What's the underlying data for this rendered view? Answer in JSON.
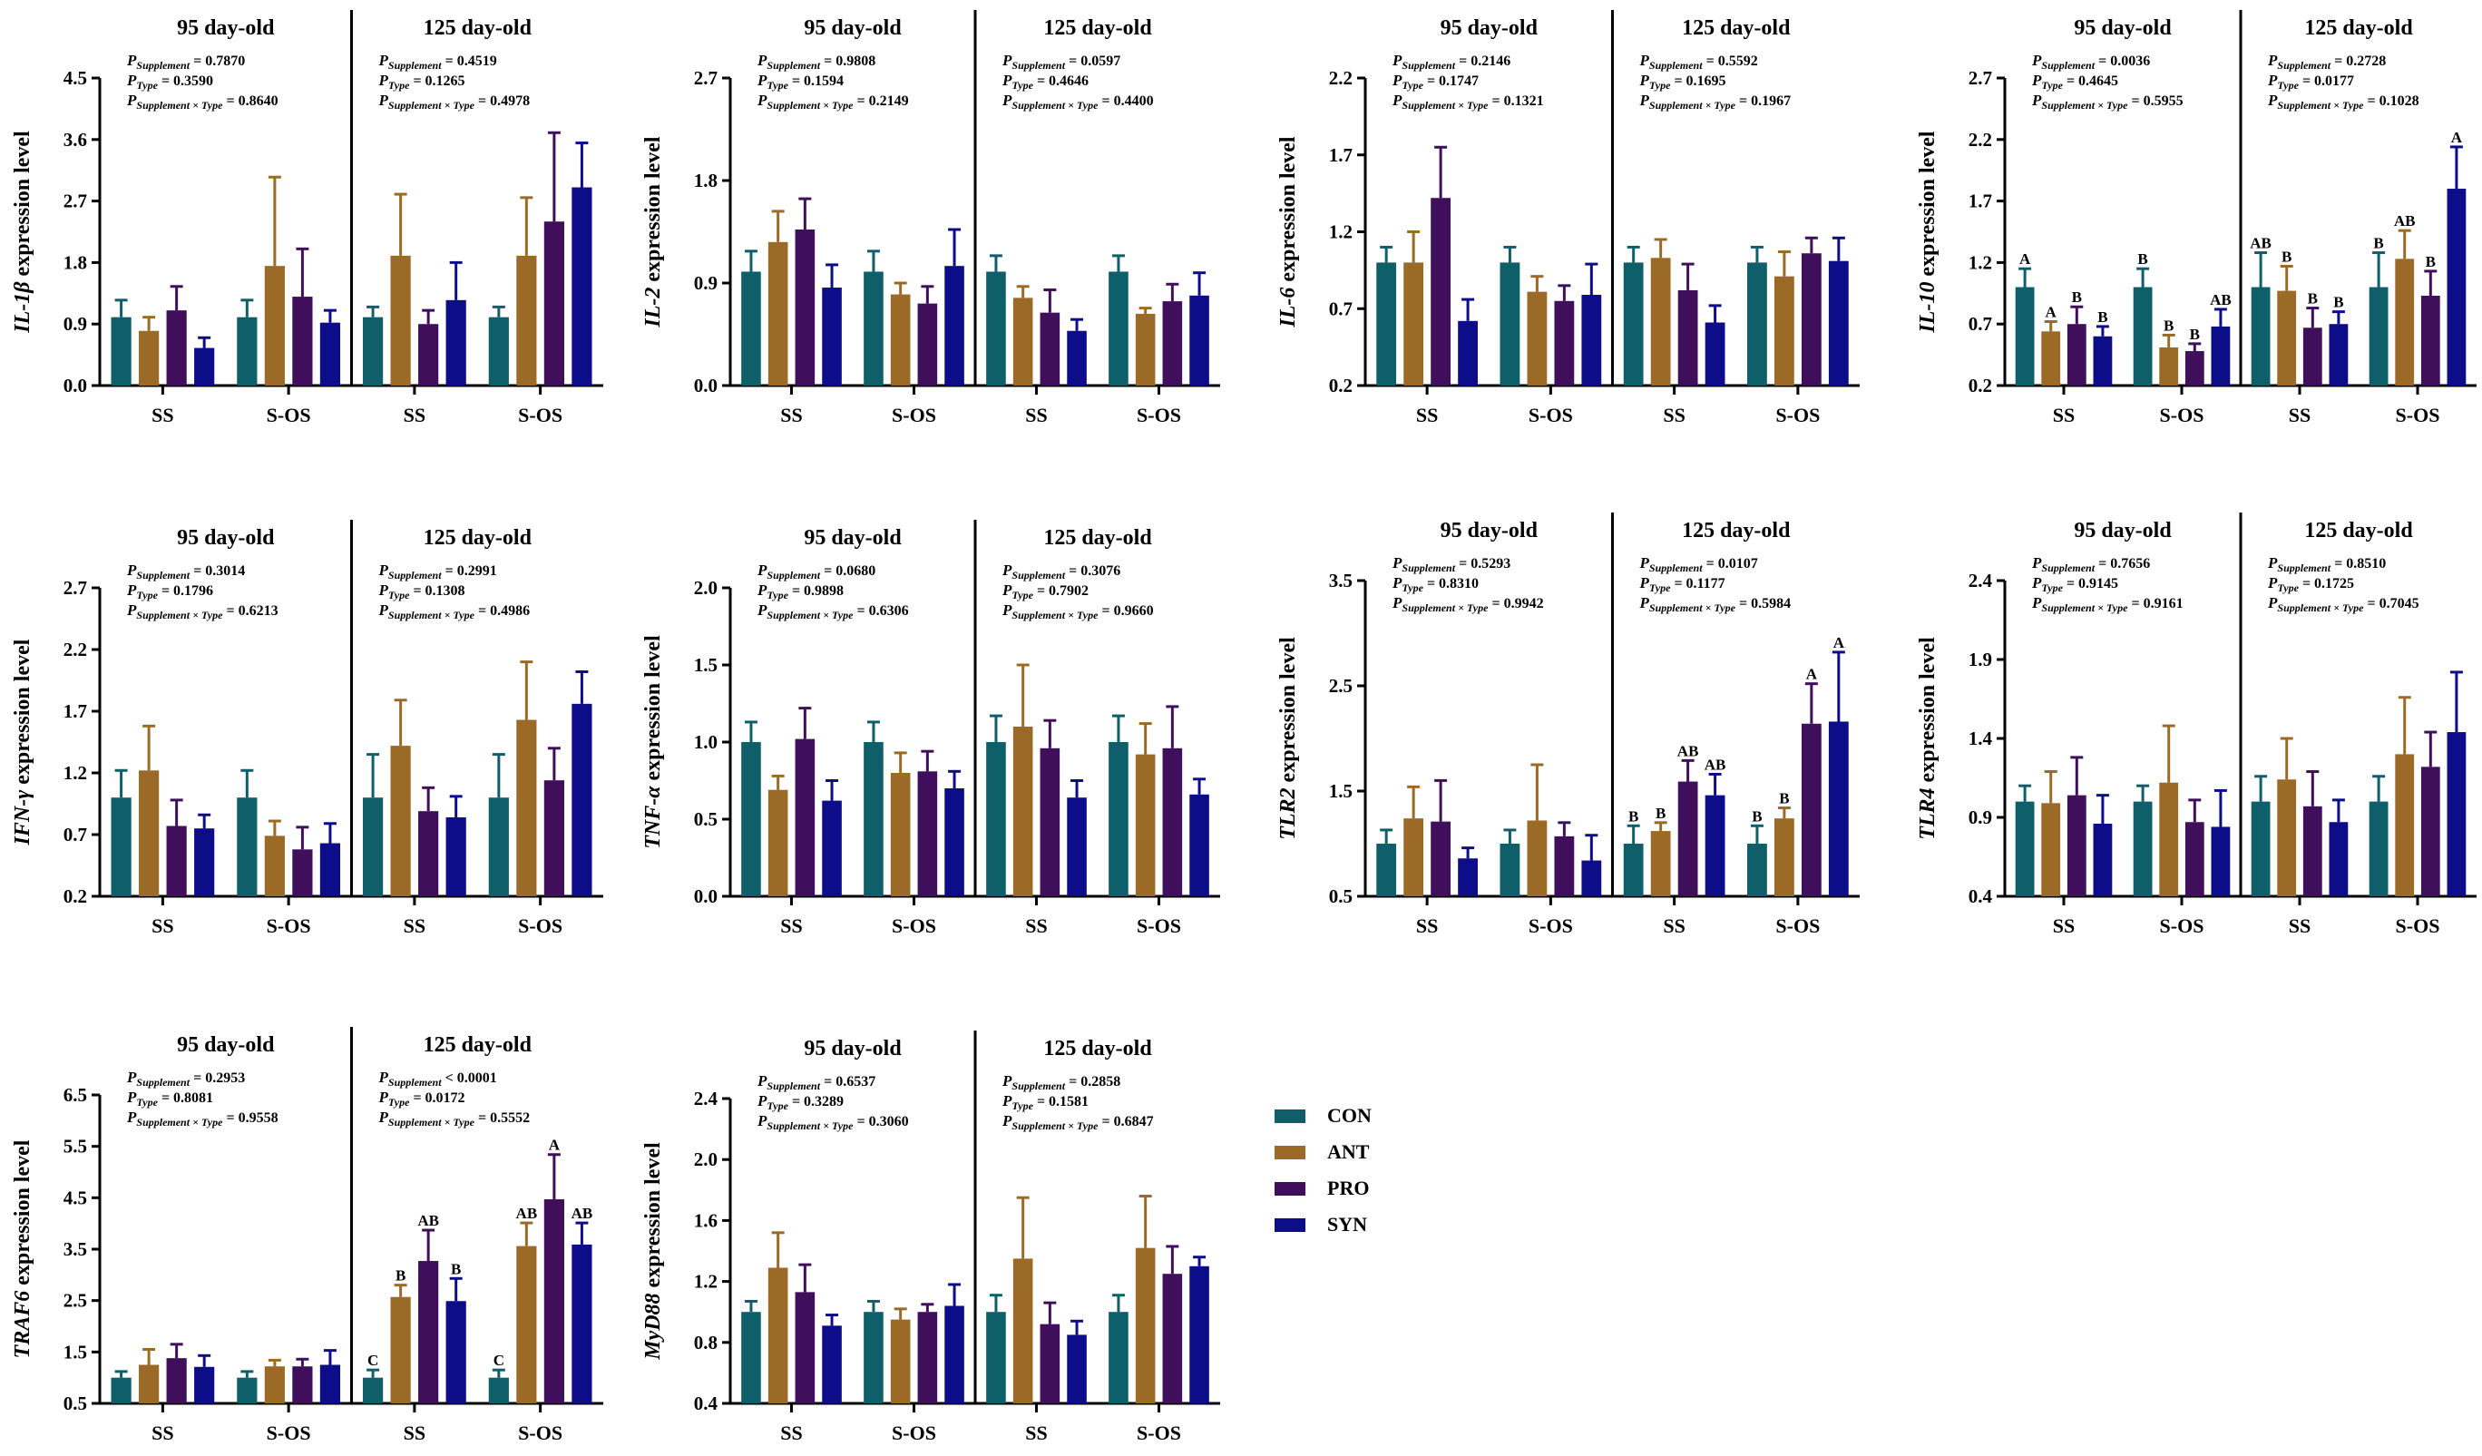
{
  "colors": {
    "CON": "#0f5f6b",
    "ANT": "#9b6a27",
    "PRO": "#3f0f5b",
    "SYN": "#0d0d8a"
  },
  "legend": [
    "CON",
    "ANT",
    "PRO",
    "SYN"
  ],
  "common": {
    "groups": [
      "SS",
      "S-OS"
    ],
    "ages": [
      "95 day-old",
      "125 day-old"
    ],
    "p_prefix": "P",
    "p_sub_supp": "Supplement",
    "p_sub_type": "Type",
    "p_sub_inter": "Supplement × Type"
  },
  "chart_data": [
    {
      "type": "bar",
      "gene": "IL-1β",
      "ylabel_suffix": " expression level",
      "ylim": [
        0,
        4.5
      ],
      "yticks": [
        "0.0",
        "0.9",
        "1.8",
        "2.7",
        "3.6",
        "4.5"
      ],
      "pvalues": [
        [
          "= 0.7870",
          "= 0.3590",
          "= 0.8640"
        ],
        [
          "= 0.4519",
          "= 0.1265",
          "= 0.4978"
        ]
      ],
      "series": [
        {
          "name": "CON",
          "values": [
            1.0,
            1.0,
            1.0,
            1.0
          ],
          "err": [
            0.25,
            0.25,
            0.15,
            0.15
          ]
        },
        {
          "name": "ANT",
          "values": [
            0.8,
            1.75,
            1.9,
            1.9
          ],
          "err": [
            0.2,
            1.3,
            0.9,
            0.85
          ]
        },
        {
          "name": "PRO",
          "values": [
            1.1,
            1.3,
            0.9,
            2.4
          ],
          "err": [
            0.35,
            0.7,
            0.2,
            1.3
          ]
        },
        {
          "name": "SYN",
          "values": [
            0.55,
            0.92,
            1.25,
            2.9
          ],
          "err": [
            0.15,
            0.18,
            0.55,
            0.65
          ]
        }
      ],
      "letters": []
    },
    {
      "type": "bar",
      "gene": "IL-2",
      "ylabel_suffix": " expression level",
      "ylim": [
        0,
        2.7
      ],
      "yticks": [
        "0.0",
        "0.9",
        "1.8",
        "2.7"
      ],
      "pvalues": [
        [
          "= 0.9808",
          "= 0.1594",
          "= 0.2149"
        ],
        [
          "= 0.0597",
          "= 0.4646",
          "= 0.4400"
        ]
      ],
      "series": [
        {
          "name": "CON",
          "values": [
            1.0,
            1.0,
            1.0,
            1.0
          ],
          "err": [
            0.18,
            0.18,
            0.14,
            0.14
          ]
        },
        {
          "name": "ANT",
          "values": [
            1.26,
            0.8,
            0.77,
            0.63
          ],
          "err": [
            0.27,
            0.1,
            0.1,
            0.05
          ]
        },
        {
          "name": "PRO",
          "values": [
            1.37,
            0.72,
            0.64,
            0.74
          ],
          "err": [
            0.27,
            0.15,
            0.2,
            0.15
          ]
        },
        {
          "name": "SYN",
          "values": [
            0.86,
            1.05,
            0.48,
            0.79
          ],
          "err": [
            0.2,
            0.32,
            0.1,
            0.2
          ]
        }
      ],
      "letters": []
    },
    {
      "type": "bar",
      "gene": "IL-6",
      "ylabel_suffix": " expression level",
      "ylim": [
        0.2,
        2.2
      ],
      "yticks": [
        "0.2",
        "0.7",
        "1.2",
        "1.7",
        "2.2"
      ],
      "pvalues": [
        [
          "= 0.2146",
          "= 0.1747",
          "= 0.1321"
        ],
        [
          "= 0.5592",
          "= 0.1695",
          "= 0.1967"
        ]
      ],
      "series": [
        {
          "name": "CON",
          "values": [
            1.0,
            1.0,
            1.0,
            1.0
          ],
          "err": [
            0.1,
            0.1,
            0.1,
            0.1
          ]
        },
        {
          "name": "ANT",
          "values": [
            1.0,
            0.81,
            1.03,
            0.91
          ],
          "err": [
            0.2,
            0.1,
            0.12,
            0.16
          ]
        },
        {
          "name": "PRO",
          "values": [
            1.42,
            0.75,
            0.82,
            1.06
          ],
          "err": [
            0.33,
            0.1,
            0.17,
            0.1
          ]
        },
        {
          "name": "SYN",
          "values": [
            0.62,
            0.79,
            0.61,
            1.01
          ],
          "err": [
            0.14,
            0.2,
            0.11,
            0.15
          ]
        }
      ],
      "letters": []
    },
    {
      "type": "bar",
      "gene": "IL-10",
      "ylabel_suffix": " expression level",
      "ylim": [
        0.2,
        2.7
      ],
      "yticks": [
        "0.2",
        "0.7",
        "1.2",
        "1.7",
        "2.2",
        "2.7"
      ],
      "pvalues": [
        [
          "= 0.0036",
          "= 0.4645",
          "= 0.5955"
        ],
        [
          "= 0.2728",
          "= 0.0177",
          "= 0.1028"
        ]
      ],
      "series": [
        {
          "name": "CON",
          "values": [
            1.0,
            1.0,
            1.0,
            1.0
          ],
          "err": [
            0.15,
            0.15,
            0.28,
            0.28
          ]
        },
        {
          "name": "ANT",
          "values": [
            0.64,
            0.51,
            0.97,
            1.23
          ],
          "err": [
            0.08,
            0.1,
            0.2,
            0.23
          ]
        },
        {
          "name": "PRO",
          "values": [
            0.7,
            0.48,
            0.67,
            0.93
          ],
          "err": [
            0.14,
            0.06,
            0.16,
            0.2
          ]
        },
        {
          "name": "SYN",
          "values": [
            0.6,
            0.68,
            0.7,
            1.8
          ],
          "err": [
            0.08,
            0.14,
            0.1,
            0.34
          ]
        }
      ],
      "letters": [
        [
          "A",
          "A",
          "B",
          "B"
        ],
        [
          "B",
          "B",
          "B",
          "AB"
        ],
        [
          "AB",
          "B",
          "B",
          "B"
        ],
        [
          "B",
          "AB",
          "B",
          "A"
        ]
      ]
    },
    {
      "type": "bar",
      "gene": "IFN-γ",
      "ylabel_suffix": " expression level",
      "ylim": [
        0.2,
        2.7
      ],
      "yticks": [
        "0.2",
        "0.7",
        "1.2",
        "1.7",
        "2.2",
        "2.7"
      ],
      "pvalues": [
        [
          "= 0.3014",
          "= 0.1796",
          "= 0.6213"
        ],
        [
          "= 0.2991",
          "= 0.1308",
          "= 0.4986"
        ]
      ],
      "series": [
        {
          "name": "CON",
          "values": [
            1.0,
            1.0,
            1.0,
            1.0
          ],
          "err": [
            0.22,
            0.22,
            0.35,
            0.35
          ]
        },
        {
          "name": "ANT",
          "values": [
            1.22,
            0.69,
            1.42,
            1.63
          ],
          "err": [
            0.36,
            0.12,
            0.37,
            0.47
          ]
        },
        {
          "name": "PRO",
          "values": [
            0.77,
            0.58,
            0.89,
            1.14
          ],
          "err": [
            0.21,
            0.18,
            0.19,
            0.26
          ]
        },
        {
          "name": "SYN",
          "values": [
            0.75,
            0.63,
            0.84,
            1.76
          ],
          "err": [
            0.11,
            0.16,
            0.17,
            0.26
          ]
        }
      ],
      "letters": []
    },
    {
      "type": "bar",
      "gene": "TNF-α",
      "ylabel_suffix": " expression level",
      "ylim": [
        0,
        2.0
      ],
      "yticks": [
        "0.0",
        "0.5",
        "1.0",
        "1.5",
        "2.0"
      ],
      "pvalues": [
        [
          "= 0.0680",
          "= 0.9898",
          "= 0.6306"
        ],
        [
          "= 0.3076",
          "= 0.7902",
          "= 0.9660"
        ]
      ],
      "series": [
        {
          "name": "CON",
          "values": [
            1.0,
            1.0,
            1.0,
            1.0
          ],
          "err": [
            0.13,
            0.13,
            0.17,
            0.17
          ]
        },
        {
          "name": "ANT",
          "values": [
            0.69,
            0.8,
            1.1,
            0.92
          ],
          "err": [
            0.09,
            0.13,
            0.4,
            0.2
          ]
        },
        {
          "name": "PRO",
          "values": [
            1.02,
            0.81,
            0.96,
            0.96
          ],
          "err": [
            0.2,
            0.13,
            0.18,
            0.27
          ]
        },
        {
          "name": "SYN",
          "values": [
            0.62,
            0.7,
            0.64,
            0.66
          ],
          "err": [
            0.13,
            0.11,
            0.11,
            0.1
          ]
        }
      ],
      "letters": []
    },
    {
      "type": "bar",
      "gene": "TLR2",
      "ylabel_suffix": " expression level",
      "ylim": [
        0.5,
        3.5
      ],
      "yticks": [
        "0.5",
        "1.5",
        "2.5",
        "3.5"
      ],
      "pvalues": [
        [
          "= 0.5293",
          "= 0.8310",
          "= 0.9942"
        ],
        [
          "= 0.0107",
          "= 0.1177",
          "= 0.5984"
        ]
      ],
      "series": [
        {
          "name": "CON",
          "values": [
            1.0,
            1.0,
            1.0,
            1.0
          ],
          "err": [
            0.13,
            0.13,
            0.17,
            0.17
          ]
        },
        {
          "name": "ANT",
          "values": [
            1.24,
            1.22,
            1.12,
            1.24
          ],
          "err": [
            0.3,
            0.53,
            0.08,
            0.1
          ]
        },
        {
          "name": "PRO",
          "values": [
            1.21,
            1.07,
            1.59,
            2.14
          ],
          "err": [
            0.39,
            0.13,
            0.2,
            0.38
          ]
        },
        {
          "name": "SYN",
          "values": [
            0.86,
            0.84,
            1.46,
            2.16
          ],
          "err": [
            0.1,
            0.24,
            0.2,
            0.66
          ]
        }
      ],
      "letters": [
        [],
        [],
        [
          "B",
          "B",
          "AB",
          "AB"
        ],
        [
          "B",
          "B",
          "A",
          "A"
        ]
      ]
    },
    {
      "type": "bar",
      "gene": "TLR4",
      "ylabel_suffix": " expression level",
      "ylim": [
        0.4,
        2.4
      ],
      "yticks": [
        "0.4",
        "0.9",
        "1.4",
        "1.9",
        "2.4"
      ],
      "pvalues": [
        [
          "= 0.7656",
          "= 0.9145",
          "= 0.9161"
        ],
        [
          "= 0.8510",
          "= 0.1725",
          "= 0.7045"
        ]
      ],
      "series": [
        {
          "name": "CON",
          "values": [
            1.0,
            1.0,
            1.0,
            1.0
          ],
          "err": [
            0.1,
            0.1,
            0.16,
            0.16
          ]
        },
        {
          "name": "ANT",
          "values": [
            0.99,
            1.12,
            1.14,
            1.3
          ],
          "err": [
            0.2,
            0.36,
            0.26,
            0.36
          ]
        },
        {
          "name": "PRO",
          "values": [
            1.04,
            0.87,
            0.97,
            1.22
          ],
          "err": [
            0.24,
            0.14,
            0.22,
            0.22
          ]
        },
        {
          "name": "SYN",
          "values": [
            0.86,
            0.84,
            0.87,
            1.44
          ],
          "err": [
            0.18,
            0.23,
            0.14,
            0.38
          ]
        }
      ],
      "letters": []
    },
    {
      "type": "bar",
      "gene": "TRAF6",
      "ylabel_suffix": " expression level",
      "ylim": [
        0.5,
        6.5
      ],
      "yticks": [
        "0.5",
        "1.5",
        "2.5",
        "3.5",
        "4.5",
        "5.5",
        "6.5"
      ],
      "pvalues": [
        [
          "= 0.2953",
          "= 0.8081",
          "= 0.9558"
        ],
        [
          "< 0.0001",
          "= 0.0172",
          "= 0.5552"
        ]
      ],
      "series": [
        {
          "name": "CON",
          "values": [
            1.0,
            1.0,
            1.0,
            1.0
          ],
          "err": [
            0.12,
            0.12,
            0.15,
            0.15
          ]
        },
        {
          "name": "ANT",
          "values": [
            1.25,
            1.22,
            2.57,
            3.56
          ],
          "err": [
            0.3,
            0.12,
            0.23,
            0.45
          ]
        },
        {
          "name": "PRO",
          "values": [
            1.38,
            1.22,
            3.27,
            4.47
          ],
          "err": [
            0.27,
            0.14,
            0.6,
            0.87
          ]
        },
        {
          "name": "SYN",
          "values": [
            1.21,
            1.25,
            2.49,
            3.59
          ],
          "err": [
            0.22,
            0.28,
            0.44,
            0.42
          ]
        }
      ],
      "letters": [
        [],
        [],
        [
          "C",
          "B",
          "AB",
          "B"
        ],
        [
          "C",
          "AB",
          "A",
          "AB"
        ]
      ]
    },
    {
      "type": "bar",
      "gene": "MyD88",
      "ylabel_suffix": " expression level",
      "ylim": [
        0.4,
        2.4
      ],
      "yticks": [
        "0.4",
        "0.8",
        "1.2",
        "1.6",
        "2.0",
        "2.4"
      ],
      "pvalues": [
        [
          "= 0.6537",
          "= 0.3289",
          "= 0.3060"
        ],
        [
          "= 0.2858",
          "= 0.1581",
          "= 0.6847"
        ]
      ],
      "series": [
        {
          "name": "CON",
          "values": [
            1.0,
            1.0,
            1.0,
            1.0
          ],
          "err": [
            0.07,
            0.07,
            0.11,
            0.11
          ]
        },
        {
          "name": "ANT",
          "values": [
            1.29,
            0.95,
            1.35,
            1.42
          ],
          "err": [
            0.23,
            0.07,
            0.4,
            0.34
          ]
        },
        {
          "name": "PRO",
          "values": [
            1.13,
            1.0,
            0.92,
            1.25
          ],
          "err": [
            0.18,
            0.05,
            0.14,
            0.18
          ]
        },
        {
          "name": "SYN",
          "values": [
            0.91,
            1.04,
            0.85,
            1.3
          ],
          "err": [
            0.07,
            0.14,
            0.09,
            0.06
          ]
        }
      ],
      "letters": []
    }
  ]
}
